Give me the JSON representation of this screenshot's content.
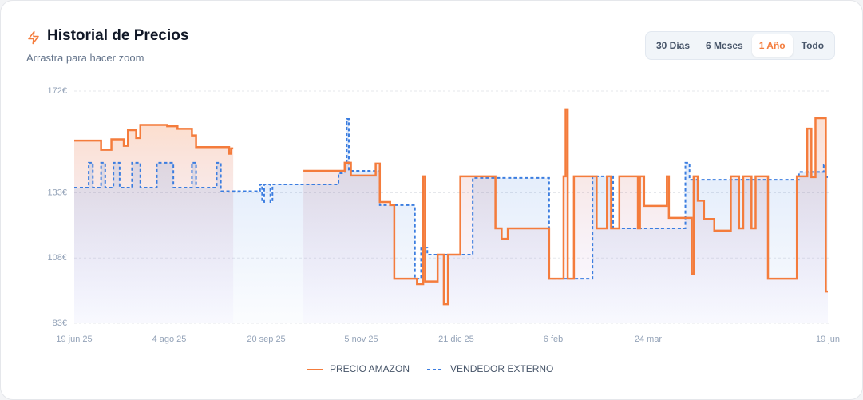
{
  "header": {
    "title": "Historial de Precios",
    "subtitle": "Arrastra para hacer zoom"
  },
  "range_buttons": [
    {
      "label": "30 Días",
      "active": false
    },
    {
      "label": "6 Meses",
      "active": false
    },
    {
      "label": "1 Año",
      "active": true
    },
    {
      "label": "Todo",
      "active": false
    }
  ],
  "chart_data": {
    "type": "line",
    "step": true,
    "grid": true,
    "legend": "bottom",
    "xlim": [
      "2025-06-19",
      "2026-06-19"
    ],
    "xticks": [
      {
        "value": "2025-06-19",
        "label": "19 jun 25"
      },
      {
        "value": "2025-08-04",
        "label": "4 ago 25"
      },
      {
        "value": "2025-09-20",
        "label": "20 sep 25"
      },
      {
        "value": "2025-11-05",
        "label": "5 nov 25"
      },
      {
        "value": "2025-12-21",
        "label": "21 dic 25"
      },
      {
        "value": "2026-02-06",
        "label": "6 feb"
      },
      {
        "value": "2026-03-24",
        "label": "24 mar"
      },
      {
        "value": "2026-06-19",
        "label": "19 jun"
      }
    ],
    "ylim": [
      83,
      172
    ],
    "yticks": [
      {
        "value": 83,
        "label": "83€"
      },
      {
        "value": 108,
        "label": "108€"
      },
      {
        "value": 133,
        "label": "133€"
      },
      {
        "value": 172,
        "label": "172€"
      }
    ],
    "series": [
      {
        "name": "PRECIO AMAZON",
        "color": "#f47c3c",
        "dashed": false,
        "x": [
          "2025-06-19",
          "2025-07-02",
          "2025-07-07",
          "2025-07-13",
          "2025-07-15",
          "2025-07-19",
          "2025-07-21",
          "2025-08-03",
          "2025-08-08",
          "2025-08-15",
          "2025-08-17",
          "2025-09-02",
          "2025-09-03",
          "2025-09-04",
          "2025-10-08",
          "2025-10-28",
          "2025-10-31",
          "2025-11-12",
          "2025-11-14",
          "2025-11-19",
          "2025-11-21",
          "2025-12-02",
          "2025-12-05",
          "2025-12-06",
          "2025-12-12",
          "2025-12-15",
          "2025-12-17",
          "2025-12-23",
          "2026-01-09",
          "2026-01-12",
          "2026-01-15",
          "2026-02-04",
          "2026-02-11",
          "2026-02-12",
          "2026-02-13",
          "2026-02-16",
          "2026-02-27",
          "2026-03-04",
          "2026-03-06",
          "2026-03-10",
          "2026-03-19",
          "2026-03-20",
          "2026-03-22",
          "2026-04-02",
          "2026-04-03",
          "2026-04-14",
          "2026-04-15",
          "2026-04-17",
          "2026-04-20",
          "2026-04-25",
          "2026-05-03",
          "2026-05-07",
          "2026-05-09",
          "2026-05-13",
          "2026-05-15",
          "2026-05-21",
          "2026-06-04",
          "2026-06-09",
          "2026-06-11",
          "2026-06-13",
          "2026-06-18"
        ],
        "values": [
          153,
          149.5,
          153.5,
          151,
          157,
          154,
          159,
          158.5,
          157.5,
          155,
          150.5,
          148,
          150,
          null,
          141.4,
          144.5,
          139.6,
          144.2,
          129.5,
          128.3,
          100.1,
          98,
          139.3,
          99,
          109.3,
          90.3,
          109.3,
          139.3,
          119.4,
          115.4,
          119.4,
          100.1,
          139.3,
          165,
          100.1,
          139.3,
          119.4,
          139.3,
          119.4,
          139.3,
          119.4,
          139.3,
          128,
          139.3,
          123.4,
          102,
          139.3,
          130,
          123,
          118.5,
          139.3,
          119.4,
          139.3,
          119.4,
          139.3,
          100.1,
          139.3,
          157.6,
          139,
          161.6,
          95.2
        ]
      },
      {
        "name": "VENDEDOR EXTERNO",
        "color": "#3b7de0",
        "dashed": true,
        "x": [
          "2025-06-19",
          "2025-06-26",
          "2025-06-28",
          "2025-07-02",
          "2025-07-04",
          "2025-07-08",
          "2025-07-11",
          "2025-07-17",
          "2025-07-21",
          "2025-07-29",
          "2025-08-06",
          "2025-08-15",
          "2025-08-17",
          "2025-08-27",
          "2025-08-29",
          "2025-09-17",
          "2025-09-18",
          "2025-09-19",
          "2025-09-22",
          "2025-09-23",
          "2025-10-25",
          "2025-10-28",
          "2025-10-29",
          "2025-10-30",
          "2025-11-14",
          "2025-12-01",
          "2025-12-04",
          "2025-12-07",
          "2025-12-29",
          "2026-02-04",
          "2026-02-25",
          "2026-03-07",
          "2026-04-11",
          "2026-04-13",
          "2026-06-05",
          "2026-06-17",
          "2026-06-18"
        ],
        "values": [
          135,
          144.5,
          135,
          144.5,
          135,
          144.5,
          135,
          144.5,
          135,
          144.5,
          135,
          144.5,
          135,
          144.5,
          133.6,
          136.2,
          129.5,
          136.2,
          129.5,
          136.2,
          140.5,
          144.5,
          161.3,
          141.4,
          128.3,
          100.1,
          112,
          109.3,
          138.7,
          100.1,
          139.3,
          119.4,
          144.5,
          138,
          141,
          143.6,
          139
        ]
      }
    ]
  }
}
